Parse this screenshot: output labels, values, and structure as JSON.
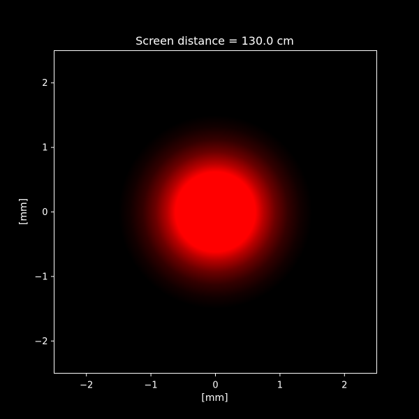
{
  "chart_data": {
    "type": "heatmap",
    "title": "Screen distance = 130.0 cm",
    "xlabel": "[mm]",
    "ylabel": "[mm]",
    "xlim": [
      -2.5,
      2.5
    ],
    "ylim": [
      -2.5,
      2.5
    ],
    "xticks": [
      -2,
      -1,
      0,
      1,
      2
    ],
    "yticks": [
      -2,
      -1,
      0,
      1,
      2
    ],
    "xtick_labels": [
      "−2",
      "−1",
      "0",
      "1",
      "2"
    ],
    "ytick_labels": [
      "−2",
      "−1",
      "0",
      "1",
      "2"
    ],
    "grid": false,
    "spot": {
      "center": [
        0,
        0
      ],
      "saturated_radius_mm": 0.62,
      "fade_radius_mm": 1.5,
      "color": "#ff0000"
    },
    "background_color": "#000000",
    "axes_color": "#ffffff"
  }
}
